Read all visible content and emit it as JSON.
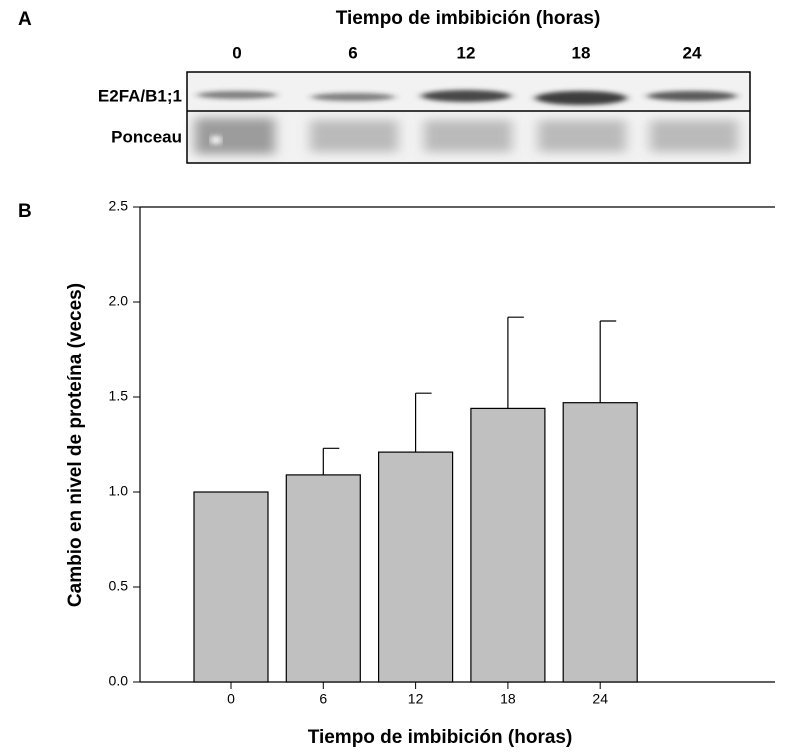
{
  "panel_a": {
    "label": "A",
    "title": "Tiempo de imbibición (horas)",
    "lanes": [
      "0",
      "6",
      "12",
      "18",
      "24"
    ],
    "rows": [
      "E2FA/B1;1",
      "Ponceau"
    ]
  },
  "chart_data": {
    "type": "bar",
    "panel_label": "B",
    "x_label": "Tiempo de imbibición (horas)",
    "y_label": "Cambio en nivel de proteína (veces)",
    "categories": [
      "0",
      "6",
      "12",
      "18",
      "24"
    ],
    "values": [
      1.0,
      1.09,
      1.21,
      1.44,
      1.47
    ],
    "errors": [
      null,
      0.14,
      0.31,
      0.48,
      0.43
    ],
    "color": "#c0c0c0",
    "ylim": [
      0,
      2.5
    ],
    "yticks": [
      {
        "value": 0,
        "label": "0.0"
      },
      0.5,
      {
        "value": 1,
        "label": "1.0"
      },
      1.5,
      {
        "value": 2,
        "label": "2.0"
      },
      2.5
    ]
  }
}
